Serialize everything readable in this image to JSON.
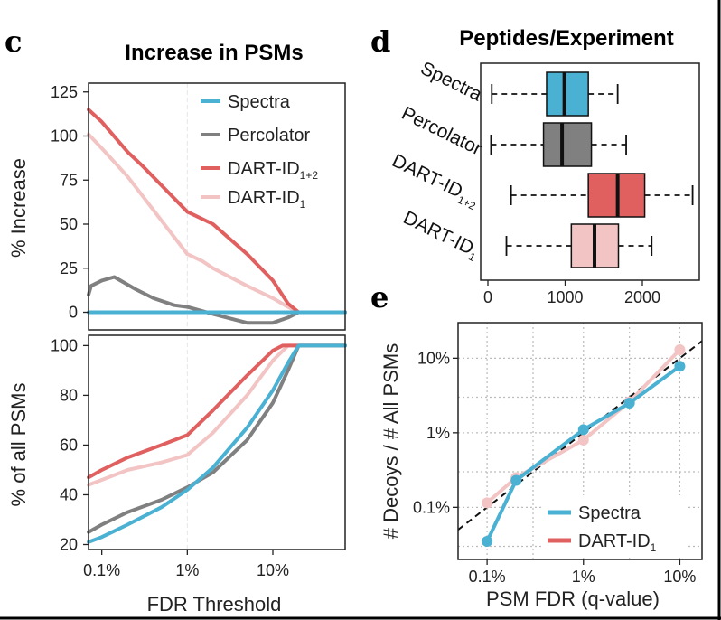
{
  "colors": {
    "spectra": "#4ab1d3",
    "percolator": "#808080",
    "dart12": "#e06060",
    "dart1": "#f3c4c4"
  },
  "panel_c": {
    "letter": "c",
    "title": "Increase in PSMs",
    "xlabel": "FDR Threshold",
    "xticks": [
      "0.1%",
      "1%",
      "10%"
    ],
    "top_ylabel": "% Increase",
    "top_yticks": [
      "125",
      "100",
      "75",
      "50",
      "25",
      "0"
    ],
    "bottom_ylabel": "% of all PSMs",
    "bottom_yticks": [
      "100",
      "80",
      "60",
      "40",
      "20"
    ],
    "legend": {
      "spectra": "Spectra",
      "percolator": "Percolator",
      "dart12": "DART-ID",
      "dart12_sub": "1+2",
      "dart1": "DART-ID",
      "dart1_sub": "1"
    }
  },
  "panel_d": {
    "letter": "d",
    "title": "Peptides/Experiment",
    "labels": {
      "spectra": "Spectra",
      "percolator": "Percolator",
      "dart12": "DART-ID",
      "dart12_sub": "1+2",
      "dart1": "DART-ID",
      "dart1_sub": "1"
    },
    "xticks": [
      "0",
      "1000",
      "2000"
    ]
  },
  "panel_e": {
    "letter": "e",
    "xlabel": "PSM FDR (q-value)",
    "ylabel": "# Decoys / # All PSMs",
    "xticks": [
      "0.1%",
      "1%",
      "10%"
    ],
    "yticks": [
      "10%",
      "1%",
      "0.1%"
    ],
    "legend": {
      "spectra": "Spectra",
      "dart1": "DART-ID",
      "dart1_sub": "1"
    }
  },
  "chart_data": [
    {
      "type": "line",
      "title": "Increase in PSMs",
      "xlabel": "FDR Threshold",
      "ylabel": "% Increase",
      "x_scale": "log",
      "xlim": [
        0.0007,
        0.7
      ],
      "ylim": [
        -10,
        130
      ],
      "legend": "top-right",
      "series": [
        {
          "name": "Spectra",
          "key": "spectra",
          "x": [
            0.0007,
            0.7
          ],
          "y": [
            0,
            0
          ]
        },
        {
          "name": "Percolator",
          "key": "percolator",
          "x": [
            0.0007,
            0.00075,
            0.001,
            0.0014,
            0.0018,
            0.0025,
            0.004,
            0.007,
            0.01,
            0.02,
            0.05,
            0.1,
            0.15,
            0.2,
            0.7
          ],
          "y": [
            10,
            15,
            18,
            20,
            17,
            13,
            8,
            4,
            3,
            -1,
            -6,
            -6,
            -3,
            0,
            0
          ]
        },
        {
          "name": "DART-ID",
          "sub": "1+2",
          "key": "dart12",
          "x": [
            0.0007,
            0.001,
            0.002,
            0.003,
            0.005,
            0.01,
            0.02,
            0.05,
            0.1,
            0.15,
            0.2,
            0.7
          ],
          "y": [
            115,
            108,
            91,
            83,
            72,
            57,
            50,
            33,
            18,
            5,
            0,
            0
          ]
        },
        {
          "name": "DART-ID",
          "sub": "1",
          "key": "dart1",
          "x": [
            0.0007,
            0.001,
            0.002,
            0.003,
            0.005,
            0.01,
            0.015,
            0.02,
            0.05,
            0.1,
            0.15,
            0.2,
            0.7
          ],
          "y": [
            101,
            93,
            77,
            66,
            52,
            33,
            29,
            25,
            15,
            8,
            3,
            0,
            0
          ]
        }
      ]
    },
    {
      "type": "line",
      "xlabel": "FDR Threshold",
      "ylabel": "% of all PSMs",
      "x_scale": "log",
      "xlim": [
        0.0007,
        0.7
      ],
      "ylim": [
        18,
        100
      ],
      "series": [
        {
          "name": "Spectra",
          "key": "spectra",
          "x": [
            0.0007,
            0.001,
            0.002,
            0.005,
            0.01,
            0.02,
            0.05,
            0.1,
            0.15,
            0.2,
            0.7
          ],
          "y": [
            21,
            23,
            28,
            35,
            42,
            51,
            67,
            82,
            93,
            100,
            100
          ]
        },
        {
          "name": "Percolator",
          "key": "percolator",
          "x": [
            0.0007,
            0.001,
            0.002,
            0.005,
            0.01,
            0.02,
            0.05,
            0.1,
            0.15,
            0.2,
            0.7
          ],
          "y": [
            25,
            28,
            33,
            38,
            43,
            49,
            62,
            77,
            90,
            100,
            100
          ]
        },
        {
          "name": "DART-ID",
          "sub": "1+2",
          "key": "dart12",
          "x": [
            0.0007,
            0.001,
            0.002,
            0.005,
            0.01,
            0.02,
            0.05,
            0.1,
            0.13,
            0.7
          ],
          "y": [
            47,
            50,
            55,
            60,
            64,
            74,
            88,
            98,
            100,
            100
          ]
        },
        {
          "name": "DART-ID",
          "sub": "1",
          "key": "dart1",
          "x": [
            0.0007,
            0.001,
            0.002,
            0.005,
            0.01,
            0.02,
            0.05,
            0.1,
            0.15,
            0.7
          ],
          "y": [
            44,
            46,
            50,
            53,
            56,
            65,
            80,
            94,
            100,
            100
          ]
        }
      ]
    },
    {
      "type": "box",
      "title": "Peptides/Experiment",
      "xlim": [
        0,
        2700
      ],
      "xticks": [
        0,
        1000,
        2000
      ],
      "series": [
        {
          "name": "Spectra",
          "key": "spectra",
          "min": 50,
          "q1": 760,
          "median": 990,
          "q3": 1300,
          "max": 1680
        },
        {
          "name": "Percolator",
          "key": "percolator",
          "min": 40,
          "q1": 720,
          "median": 960,
          "q3": 1340,
          "max": 1790
        },
        {
          "name": "DART-ID",
          "sub": "1+2",
          "key": "dart12",
          "min": 300,
          "q1": 1300,
          "median": 1680,
          "q3": 2030,
          "max": 2650
        },
        {
          "name": "DART-ID",
          "sub": "1",
          "key": "dart1",
          "min": 240,
          "q1": 1080,
          "median": 1380,
          "q3": 1690,
          "max": 2120
        }
      ]
    },
    {
      "type": "line",
      "xlabel": "PSM FDR (q-value)",
      "ylabel": "# Decoys / # All PSMs",
      "x_scale": "log",
      "y_scale": "log",
      "xlim": [
        0.0005,
        0.17
      ],
      "ylim": [
        0.0002,
        0.3
      ],
      "grid": true,
      "legend": "bottom-right",
      "reference_line": "y = x (dashed)",
      "series": [
        {
          "name": "Spectra",
          "key": "spectra",
          "x": [
            0.001,
            0.002,
            0.01,
            0.03,
            0.1
          ],
          "y": [
            0.00035,
            0.0023,
            0.011,
            0.025,
            0.078
          ]
        },
        {
          "name": "DART-ID",
          "sub": "1",
          "key": "dart1",
          "x": [
            0.001,
            0.002,
            0.01,
            0.03,
            0.1
          ],
          "y": [
            0.00115,
            0.0025,
            0.008,
            0.026,
            0.13
          ]
        }
      ]
    }
  ]
}
